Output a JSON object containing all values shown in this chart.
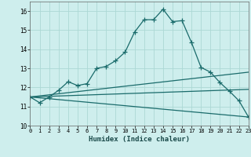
{
  "xlabel": "Humidex (Indice chaleur)",
  "bg_color": "#ceeeed",
  "grid_color": "#acd8d5",
  "line_color": "#1a6b6b",
  "xlim": [
    0,
    23
  ],
  "ylim": [
    10,
    16.5
  ],
  "yticks": [
    10,
    11,
    12,
    13,
    14,
    15,
    16
  ],
  "xticks": [
    0,
    1,
    2,
    3,
    4,
    5,
    6,
    7,
    8,
    9,
    10,
    11,
    12,
    13,
    14,
    15,
    16,
    17,
    18,
    19,
    20,
    21,
    22,
    23
  ],
  "line1_x": [
    0,
    1,
    2,
    3,
    4,
    5,
    6,
    7,
    8,
    9,
    10,
    11,
    12,
    13,
    14,
    15,
    16,
    17,
    18,
    19,
    20,
    21,
    22,
    23
  ],
  "line1_y": [
    11.5,
    11.2,
    11.5,
    11.85,
    12.3,
    12.1,
    12.2,
    13.0,
    13.1,
    13.4,
    13.85,
    14.9,
    15.55,
    15.55,
    16.1,
    15.45,
    15.5,
    14.35,
    13.05,
    12.8,
    12.25,
    11.8,
    11.3,
    10.45
  ],
  "line2_x": [
    0,
    23
  ],
  "line2_y": [
    11.5,
    12.8
  ],
  "line3_x": [
    0,
    23
  ],
  "line3_y": [
    11.5,
    11.9
  ],
  "line4_x": [
    0,
    23
  ],
  "line4_y": [
    11.5,
    10.45
  ]
}
